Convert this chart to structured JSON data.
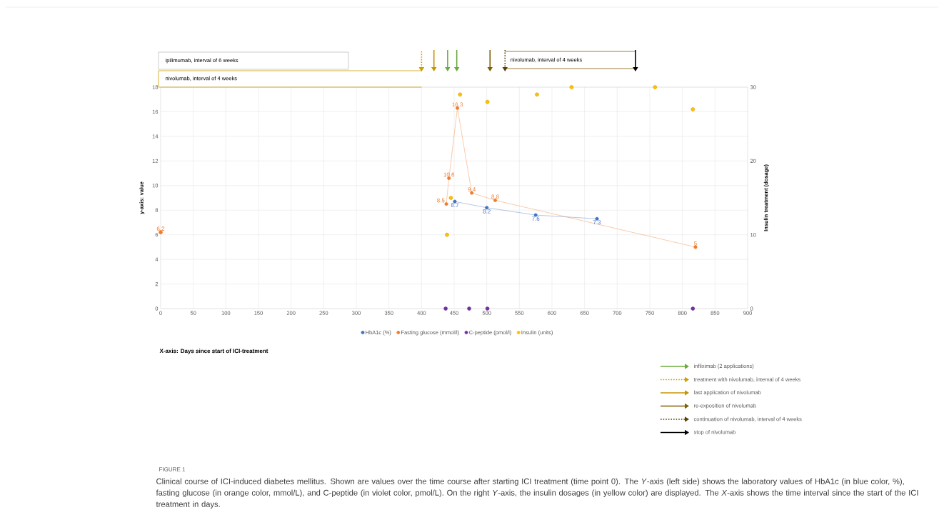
{
  "chart_data": {
    "type": "line",
    "ylabel": "y-axis: value",
    "y2label": "Insulin treatment (dosage)",
    "xlim": [
      0,
      900
    ],
    "xticks": [
      0,
      50,
      100,
      150,
      200,
      250,
      300,
      350,
      400,
      450,
      500,
      550,
      600,
      650,
      700,
      750,
      800,
      850,
      900
    ],
    "ylim": [
      0,
      18
    ],
    "yticks": [
      0,
      2,
      4,
      6,
      8,
      10,
      12,
      14,
      16,
      18
    ],
    "y2lim": [
      0,
      30
    ],
    "y2ticks": [
      0,
      10,
      20,
      30
    ],
    "grid": true,
    "legend": "bottom",
    "marker": "circle",
    "series": [
      {
        "name": "HbA1c (%)",
        "type": "line",
        "color": "#4472c4",
        "x": [
          451,
          500,
          575,
          669
        ],
        "values": [
          8.7,
          8.2,
          7.6,
          7.3
        ],
        "value_labels": [
          "8.7",
          "8.2",
          "7.6",
          "7.3"
        ]
      },
      {
        "name": "Fasting glucose (mmol/l)",
        "type": "line",
        "color": "#ed7d31",
        "x": [
          438,
          442,
          455,
          477,
          513,
          820
        ],
        "values": [
          8.5,
          10.6,
          16.3,
          9.4,
          8.8,
          5
        ],
        "value_labels": [
          "8.5",
          "10.6",
          "16.3",
          "9.4",
          "8.8",
          "5"
        ]
      },
      {
        "type": "scatter",
        "color": "#ed7d31",
        "x": [
          0
        ],
        "values": [
          6.2
        ],
        "value_labels": [
          "6.2"
        ]
      },
      {
        "name": "C-peptide (pmol/l)",
        "type": "scatter",
        "color": "#7030a0",
        "x": [
          437,
          473,
          501,
          816
        ],
        "values": [
          0,
          0,
          0,
          0
        ]
      },
      {
        "name": "Insulin (units)",
        "type": "scatter",
        "color": "#ffc000",
        "axis": "y2",
        "x": [
          439,
          445,
          459,
          501,
          577,
          630,
          758,
          816
        ],
        "values": [
          10,
          15,
          29,
          28,
          29,
          30,
          30,
          27
        ]
      }
    ],
    "annotations": [
      "X-axis: Days since start of ICI-treatment",
      "ipilimumab, interval of 6 weeks",
      "nivolumab, interval of 4 weeks",
      "nivolumab, interval of 4 weeks",
      "infliximab (2 applications)",
      "treatment with nivolumab, interval of 4 weeks",
      "last application of nivolumab",
      "re-exposition of nivolumab",
      "continuation of nivolumab, interval of 4 weeks",
      "stop of nivolumab",
      "FIGURE 1",
      "Clinical course of ICI-induced diabetes mellitus. Shown are values over the time course after starting ICI treatment (time point 0). The *Y*-axis (left side) shows the laboratory values of HbA1c (in blue color, %), fasting glucose (in orange color, mmol/L), and C-peptide (in violet color, pmol/L). On the right *Y*-axis, the insulin dosages (in yellow color) are displayed. The *X*-axis shows the time interval since the start of the ICI treatment in days."
    ]
  }
}
